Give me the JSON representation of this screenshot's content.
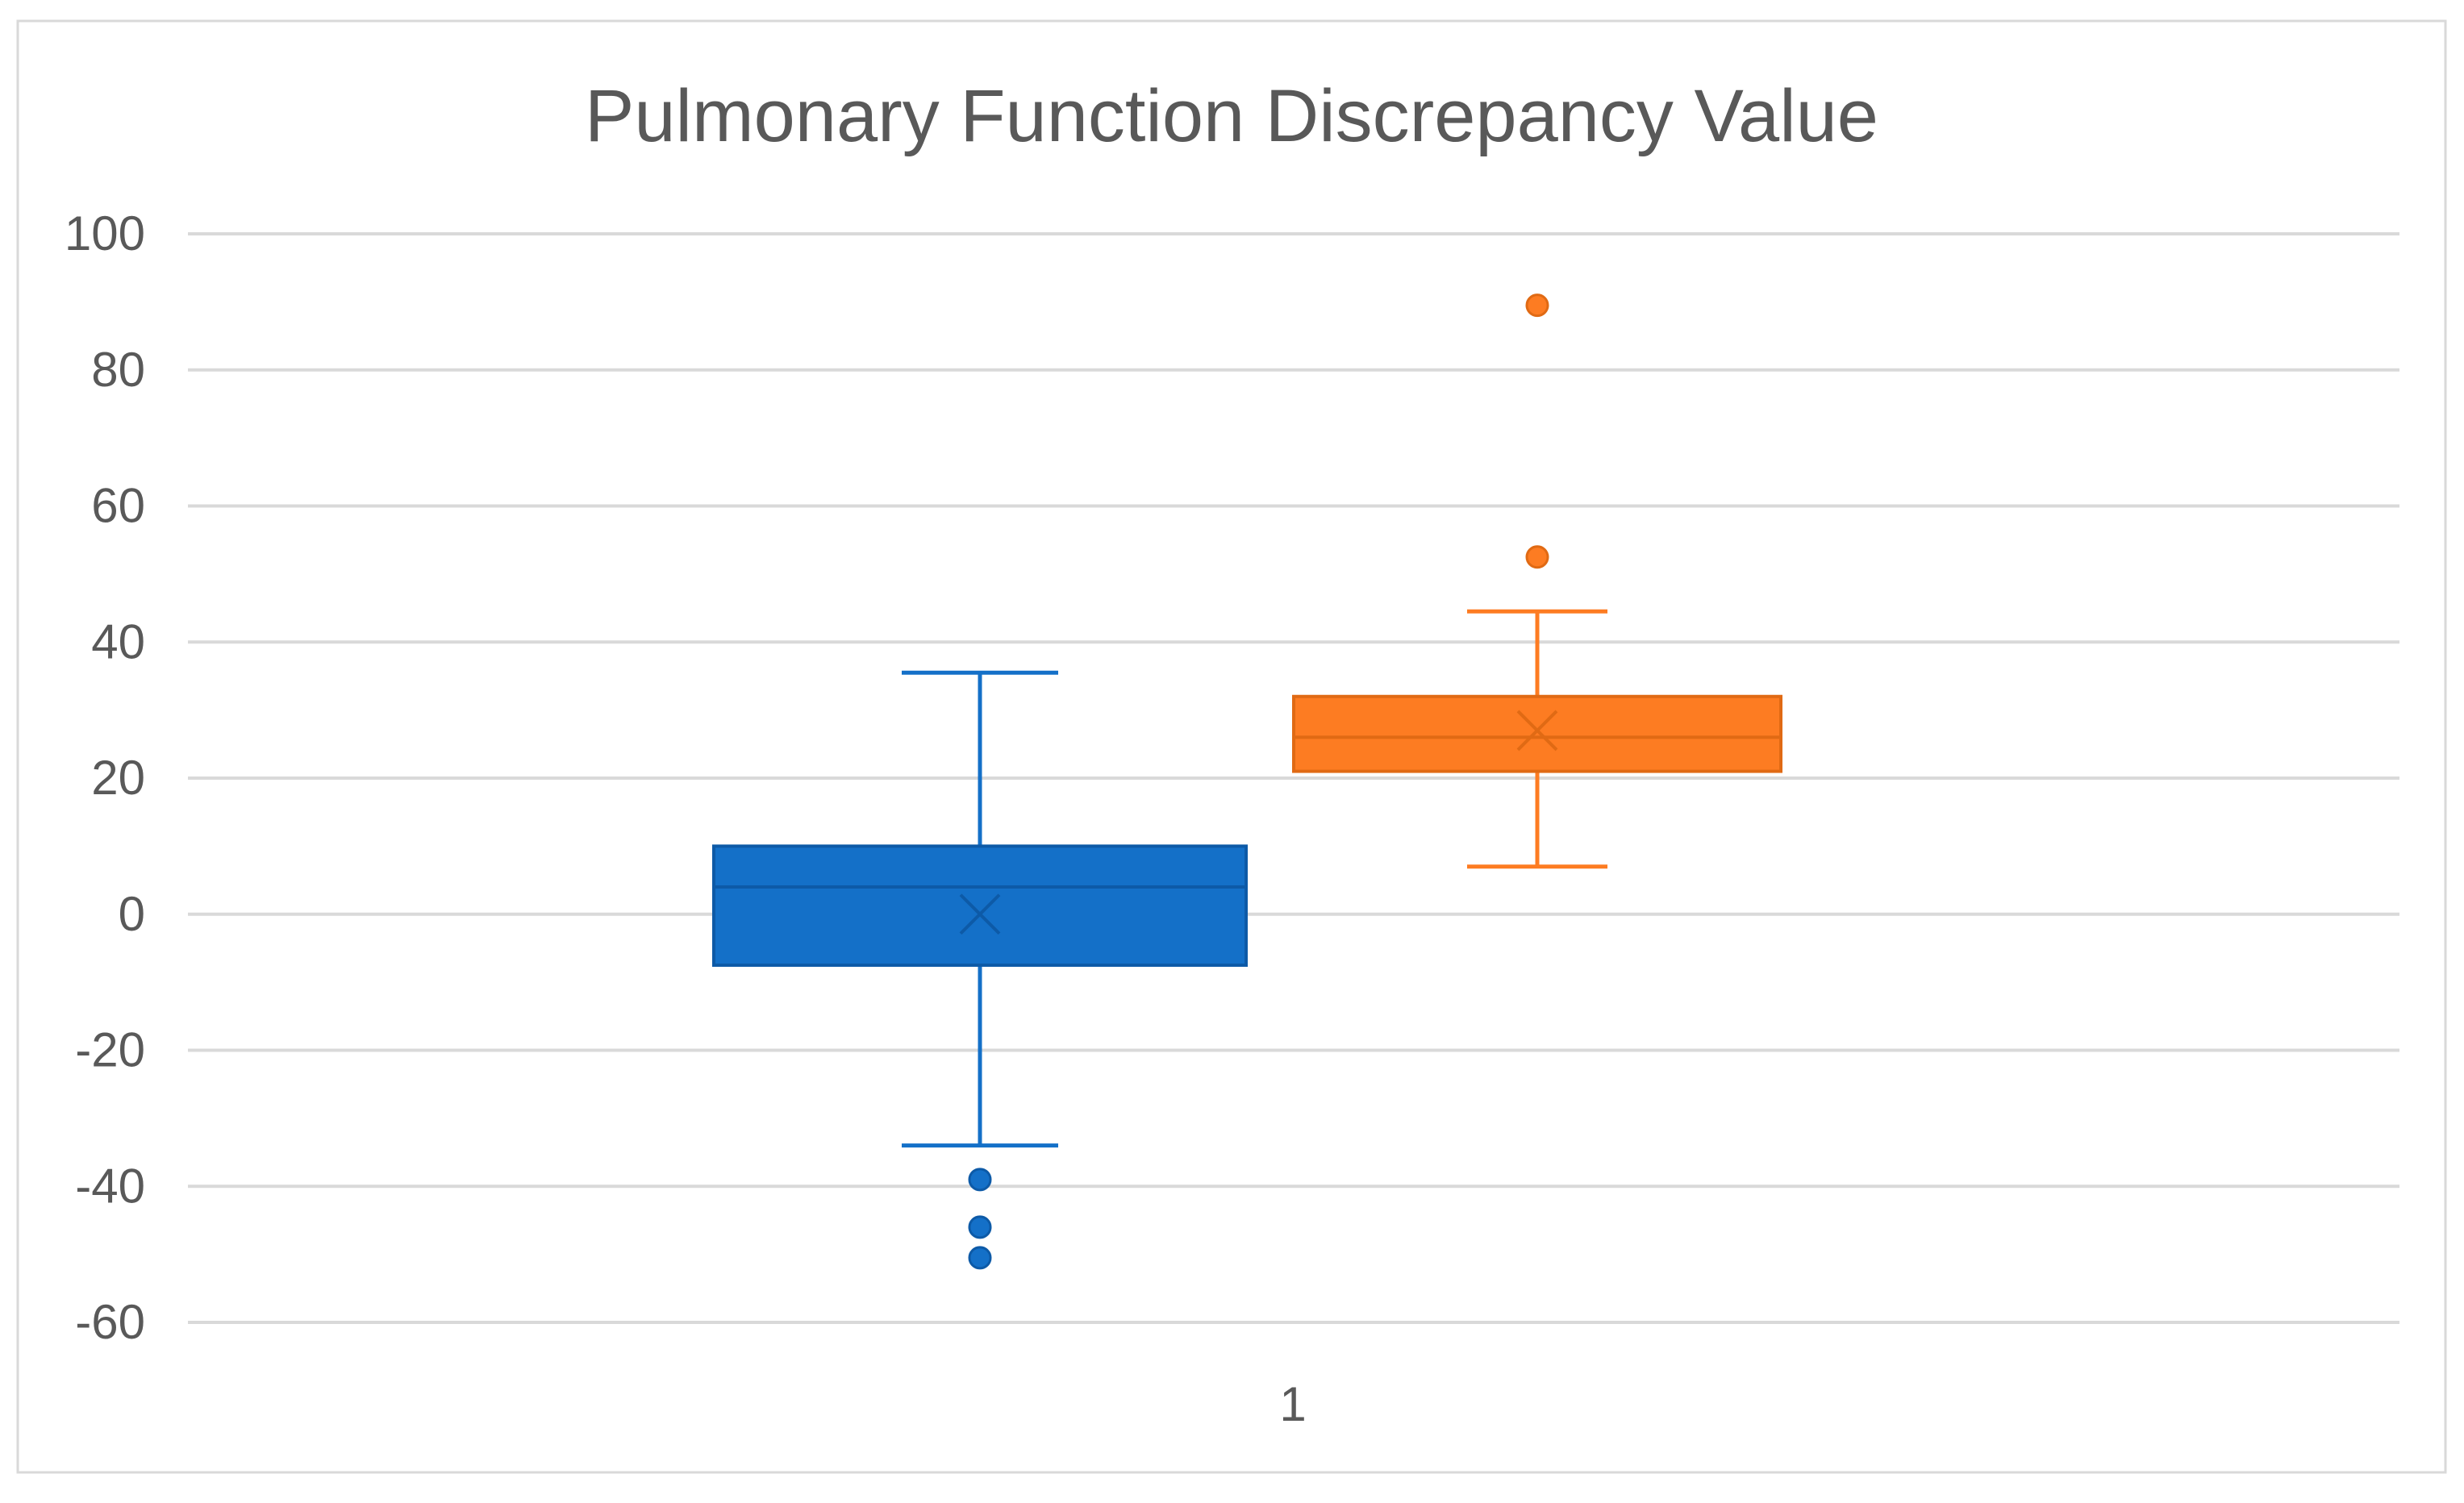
{
  "chart_data": {
    "type": "box",
    "title": "Pulmonary Function Discrepancy Value",
    "xlabel": "",
    "ylabel": "",
    "categories": [
      "1"
    ],
    "ylim": [
      -60,
      100
    ],
    "yticks": [
      100,
      80,
      60,
      40,
      20,
      0,
      -20,
      -40,
      -60
    ],
    "grid": true,
    "legend": "none",
    "series": [
      {
        "color": "#1470c8",
        "min": -34,
        "q1": -7.5,
        "median": 4,
        "q3": 10,
        "max": 35.5,
        "mean": 0,
        "outliers": [
          -39,
          -46,
          -50.5
        ]
      },
      {
        "color": "#fd7c22",
        "min": 7,
        "q1": 21,
        "median": 26,
        "q3": 32,
        "max": 44.5,
        "mean": 27,
        "outliers": [
          52.5,
          89.5
        ]
      }
    ]
  }
}
